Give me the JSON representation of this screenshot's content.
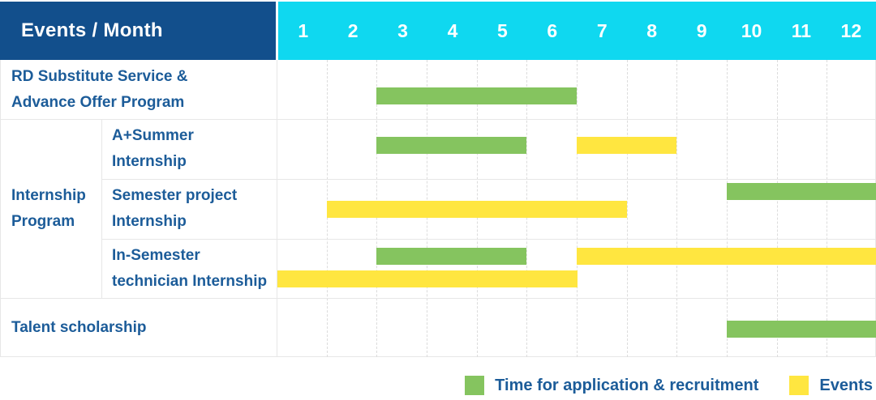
{
  "header": {
    "title": "Events / Month",
    "months": [
      "1",
      "2",
      "3",
      "4",
      "5",
      "6",
      "7",
      "8",
      "9",
      "10",
      "11",
      "12"
    ]
  },
  "group_label": "Internship\nProgram",
  "rows": [
    {
      "id": "rd-substitute-service",
      "label": "RD Substitute Service &\nAdvance Offer Program",
      "bars": [
        {
          "type": "application",
          "start": 3,
          "end": 6
        }
      ]
    },
    {
      "id": "a-plus-summer-internship",
      "label": "A+Summer\nInternship",
      "group": "Internship Program",
      "bars": [
        {
          "type": "application",
          "start": 3,
          "end": 5
        },
        {
          "type": "event",
          "start": 7,
          "end": 8
        }
      ]
    },
    {
      "id": "semester-project-internship",
      "label": "Semester project\nInternship",
      "group": "Internship Program",
      "bars": [
        {
          "type": "application",
          "start": 10,
          "end": 12
        },
        {
          "type": "event",
          "start": 2,
          "end": 7
        }
      ]
    },
    {
      "id": "in-semester-technician-internship",
      "label": "In-Semester\ntechnician Internship",
      "group": "Internship Program",
      "bars": [
        {
          "type": "application",
          "start": 3,
          "end": 5
        },
        {
          "type": "event",
          "start": 7,
          "end": 12
        },
        {
          "type": "event",
          "start": 1,
          "end": 6
        }
      ]
    },
    {
      "id": "talent-scholarship",
      "label": "Talent scholarship",
      "bars": [
        {
          "type": "application",
          "start": 10,
          "end": 12
        }
      ]
    }
  ],
  "legend": [
    {
      "type": "application",
      "label": "Time for application & recruitment"
    },
    {
      "type": "event",
      "label": "Events"
    }
  ],
  "colors": {
    "header_bg": "#124f8c",
    "month_header_bg": "#0fd8f0",
    "green": "#85c45f",
    "yellow": "#ffe640",
    "label_text": "#1c5c99",
    "grid": "#e7e7e7"
  },
  "chart_data": {
    "type": "bar",
    "subtype": "gantt-timeline",
    "title": "Events / Month",
    "xlabel": "Month",
    "x_ticks": [
      1,
      2,
      3,
      4,
      5,
      6,
      7,
      8,
      9,
      10,
      11,
      12
    ],
    "x_range": [
      1,
      12
    ],
    "grid": true,
    "legend_position": "bottom-right",
    "legend": [
      {
        "color": "#85c45f",
        "label": "Time for application & recruitment"
      },
      {
        "color": "#ffe640",
        "label": "Events"
      }
    ],
    "series": [
      {
        "row": "RD Substitute Service & Advance Offer Program",
        "bars": [
          {
            "category": "Time for application & recruitment",
            "start_month": 3,
            "end_month": 6
          }
        ]
      },
      {
        "row": "Internship Program — A+Summer Internship",
        "bars": [
          {
            "category": "Time for application & recruitment",
            "start_month": 3,
            "end_month": 5
          },
          {
            "category": "Events",
            "start_month": 7,
            "end_month": 8
          }
        ]
      },
      {
        "row": "Internship Program — Semester project Internship",
        "bars": [
          {
            "category": "Time for application & recruitment",
            "start_month": 10,
            "end_month": 12
          },
          {
            "category": "Events",
            "start_month": 2,
            "end_month": 7
          }
        ]
      },
      {
        "row": "Internship Program — In-Semester technician Internship",
        "bars": [
          {
            "category": "Time for application & recruitment",
            "start_month": 3,
            "end_month": 5
          },
          {
            "category": "Events",
            "start_month": 7,
            "end_month": 12
          },
          {
            "category": "Events",
            "start_month": 1,
            "end_month": 6
          }
        ]
      },
      {
        "row": "Talent scholarship",
        "bars": [
          {
            "category": "Time for application & recruitment",
            "start_month": 10,
            "end_month": 12
          }
        ]
      }
    ]
  }
}
